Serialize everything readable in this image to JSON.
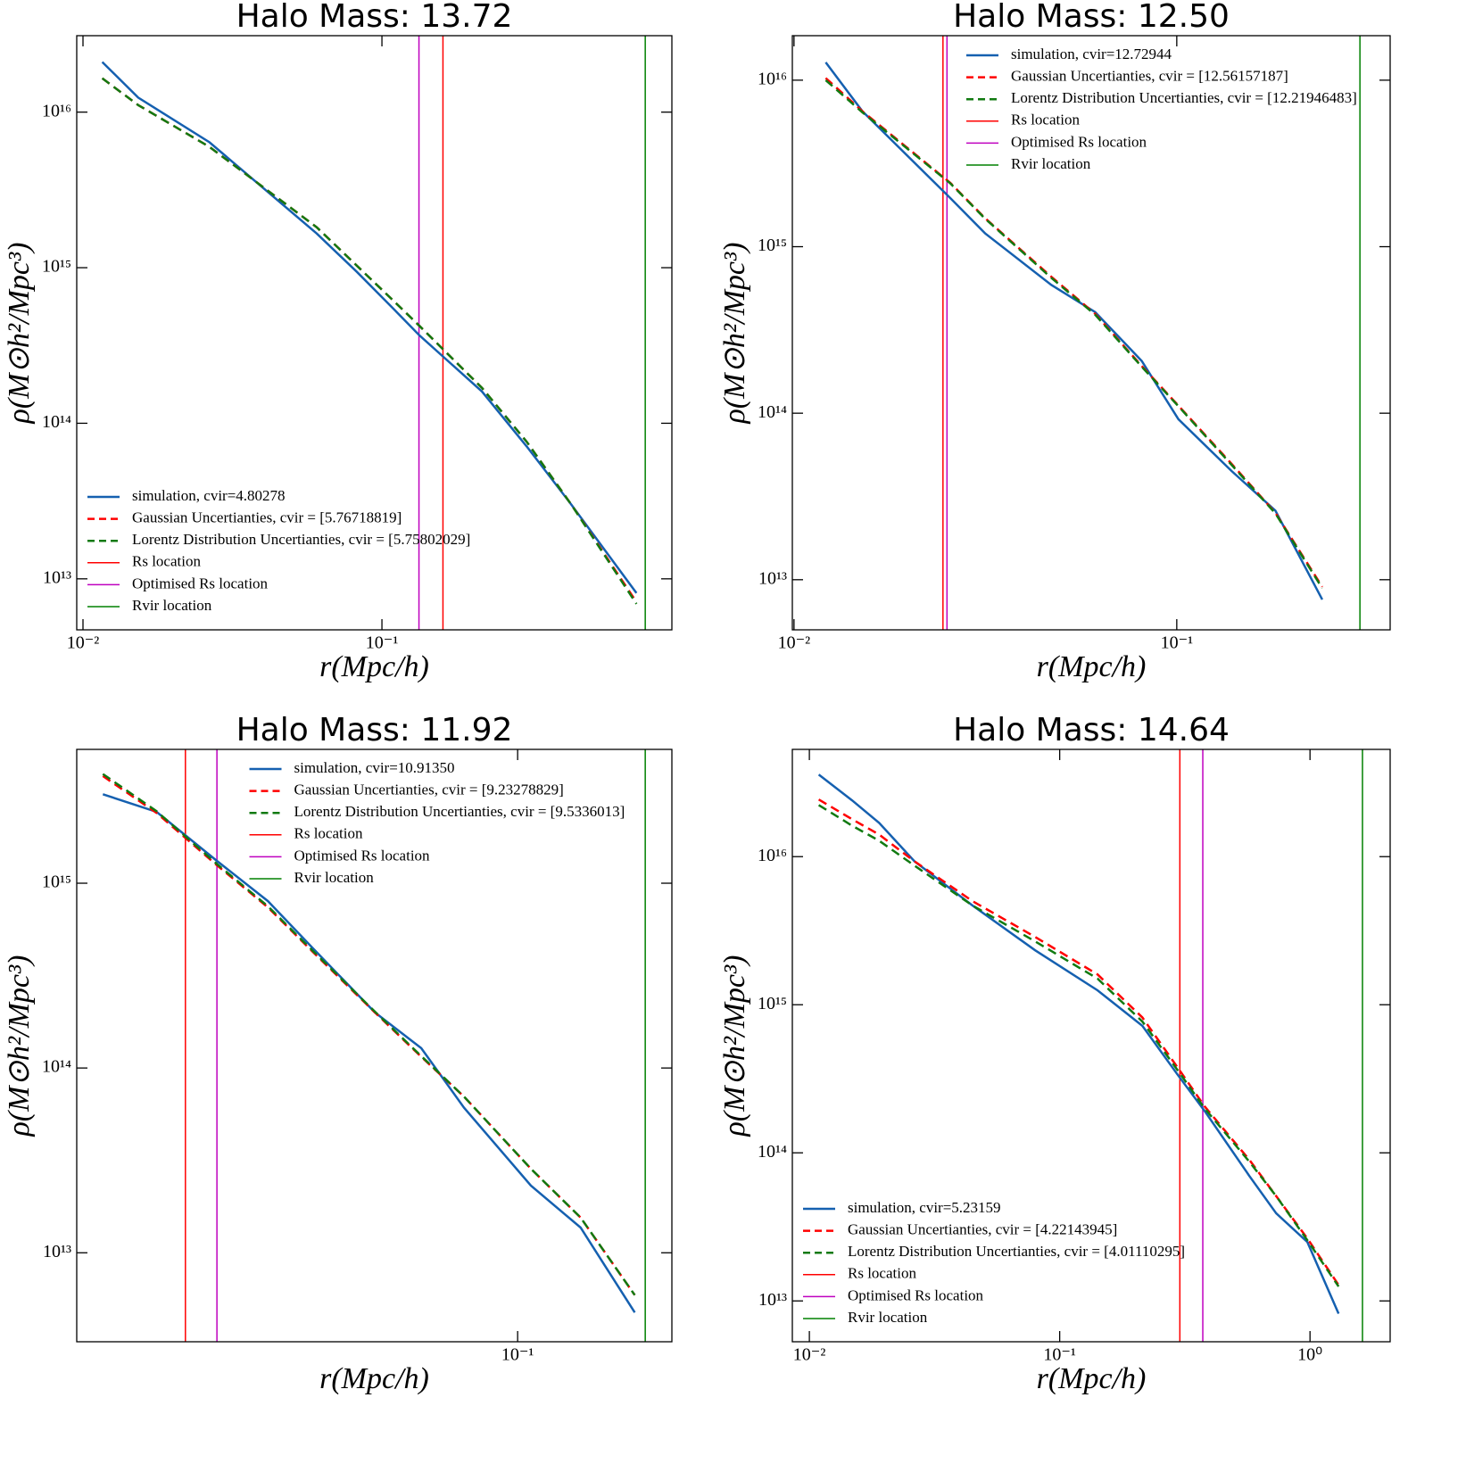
{
  "chart_data": [
    {
      "type": "line",
      "title": "Halo Mass: 13.72",
      "x_label": "r(Mpc/h)",
      "y_label": "ρ(M⊙h²/Mpc³)",
      "xscale": "log",
      "yscale": "log",
      "legend": "lower left",
      "x": [
        0.0116,
        0.0153,
        0.0265,
        0.0605,
        0.0824,
        0.1086,
        0.133,
        0.216,
        0.305,
        0.43,
        0.71
      ],
      "series": [
        {
          "name": "simulation, cvir=4.80278",
          "color": "#1560b0",
          "linestyle": "solid",
          "values": [
            2.1e+16,
            1.24e+16,
            6400000000000000.0,
            1660000000000000.0,
            940000000000000.0,
            550000000000000.0,
            370000000000000.0,
            160000000000000.0,
            71000000000000.0,
            30000000000000.0,
            8100000000000.0
          ]
        },
        {
          "name": "Gaussian Uncertianties, cvir = [5.76718819]",
          "color": "#ff0000",
          "linestyle": "dashed",
          "values": [
            1.65e+16,
            1.11e+16,
            5970000000000000.0,
            1820000000000000.0,
            1030000000000000.0,
            620000000000000.0,
            426000000000000.0,
            169000000000000.0,
            76000000000000.0,
            30000000000000.0,
            7100000000000.0
          ]
        },
        {
          "name": "Lorentz Distribution Uncertianties, cvir = [5.75802029]",
          "color": "#117a11",
          "linestyle": "dashed",
          "values": [
            1.65e+16,
            1.11e+16,
            5970000000000000.0,
            1820000000000000.0,
            1030000000000000.0,
            620000000000000.0,
            426000000000000.0,
            169000000000000.0,
            76000000000000.0,
            30000000000000.0,
            6900000000000.0
          ]
        }
      ],
      "vlines": [
        {
          "name": "Rs location",
          "color": "#ff0000",
          "x": 0.16
        },
        {
          "name": "Optimised Rs location",
          "color": "#bf00bf",
          "x": 0.133
        },
        {
          "name": "Rvir location",
          "color": "#008000",
          "x": 0.76
        }
      ],
      "xlim": [
        0.00953,
        0.933
      ],
      "ylim": [
        4700000000000.0,
        3.1e+16
      ],
      "xticks": [
        {
          "value": 0.01,
          "label": "10⁻²"
        },
        {
          "value": 0.1,
          "label": "10⁻¹"
        }
      ],
      "yticks": [
        {
          "value": 10000000000000.0,
          "label": "10¹³"
        },
        {
          "value": 100000000000000.0,
          "label": "10¹⁴"
        },
        {
          "value": 1000000000000000.0,
          "label": "10¹⁵"
        },
        {
          "value": 1e+16,
          "label": "10¹⁶"
        }
      ]
    },
    {
      "type": "line",
      "title": "Halo Mass: 12.50",
      "x_label": "r(Mpc/h)",
      "y_label": "ρ(M⊙h²/Mpc³)",
      "xscale": "log",
      "yscale": "log",
      "legend": "upper center",
      "x": [
        0.0121,
        0.0151,
        0.0256,
        0.0316,
        0.047,
        0.0612,
        0.081,
        0.101,
        0.139,
        0.181,
        0.24
      ],
      "series": [
        {
          "name": "simulation, cvir=12.72944",
          "color": "#1560b0",
          "linestyle": "solid",
          "values": [
            1.28e+16,
            6500000000000000.0,
            1960000000000000.0,
            1200000000000000.0,
            590000000000000.0,
            405000000000000.0,
            206000000000000.0,
            92000000000000.0,
            45000000000000.0,
            26000000000000.0,
            7600000000000.0
          ]
        },
        {
          "name": "Gaussian Uncertianties, cvir = [12.56157187]",
          "color": "#ff0000",
          "linestyle": "dashed",
          "values": [
            1.03e+16,
            6500000000000000.0,
            2420000000000000.0,
            1480000000000000.0,
            660000000000000.0,
            395000000000000.0,
            192000000000000.0,
            111000000000000.0,
            49700000000000.0,
            25200000000000.0,
            9060000000000.0
          ]
        },
        {
          "name": "Lorentz Distribution Uncertianties, cvir = [12.21946483]",
          "color": "#117a11",
          "linestyle": "dashed",
          "values": [
            1e+16,
            6400000000000000.0,
            2400000000000000.0,
            1470000000000000.0,
            650000000000000.0,
            390000000000000.0,
            190000000000000.0,
            110000000000000.0,
            49000000000000.0,
            25000000000000.0,
            8900000000000.0
          ]
        }
      ],
      "vlines": [
        {
          "name": "Rs location",
          "color": "#ff0000",
          "x": 0.0245
        },
        {
          "name": "Optimised Rs location",
          "color": "#bf00bf",
          "x": 0.0251
        },
        {
          "name": "Rvir location",
          "color": "#008000",
          "x": 0.301
        }
      ],
      "xlim": [
        0.0099,
        0.361
      ],
      "ylim": [
        5000000000000.0,
        1.85e+16
      ],
      "xticks": [
        {
          "value": 0.01,
          "label": "10⁻²"
        },
        {
          "value": 0.1,
          "label": "10⁻¹"
        }
      ],
      "yticks": [
        {
          "value": 10000000000000.0,
          "label": "10¹³"
        },
        {
          "value": 100000000000000.0,
          "label": "10¹⁴"
        },
        {
          "value": 1000000000000000.0,
          "label": "10¹⁵"
        },
        {
          "value": 1e+16,
          "label": "10¹⁶"
        }
      ]
    },
    {
      "type": "line",
      "title": "Halo Mass: 11.92",
      "x_label": "r(Mpc/h)",
      "y_label": "ρ(M⊙h²/Mpc³)",
      "xscale": "log",
      "yscale": "log",
      "legend": "upper center",
      "x": [
        0.012,
        0.0158,
        0.0215,
        0.0279,
        0.0351,
        0.0482,
        0.0611,
        0.076,
        0.107,
        0.138,
        0.182
      ],
      "series": [
        {
          "name": "simulation, cvir=10.91350",
          "color": "#1560b0",
          "linestyle": "solid",
          "values": [
            3030000000000000.0,
            2430000000000000.0,
            1320000000000000.0,
            800000000000000.0,
            445000000000000.0,
            200000000000000.0,
            128000000000000.0,
            61000000000000.0,
            23100000000000.0,
            13700000000000.0,
            4750000000000.0
          ]
        },
        {
          "name": "Gaussian Uncertianties, cvir = [9.23278829]",
          "color": "#ff0000",
          "linestyle": "dashed",
          "values": [
            3800000000000000.0,
            2400000000000000.0,
            1250000000000000.0,
            740000000000000.0,
            425000000000000.0,
            200000000000000.0,
            115000000000000.0,
            70000000000000.0,
            28500000000000.0,
            15500000000000.0,
            5900000000000.0
          ]
        },
        {
          "name": "Lorentz Distribution Uncertianties, cvir = [9.5336013]",
          "color": "#117a11",
          "linestyle": "dashed",
          "values": [
            3900000000000000.0,
            2450000000000000.0,
            1270000000000000.0,
            750000000000000.0,
            430000000000000.0,
            202000000000000.0,
            116000000000000.0,
            70000000000000.0,
            28500000000000.0,
            15500000000000.0,
            5900000000000.0
          ]
        }
      ],
      "vlines": [
        {
          "name": "Rs location",
          "color": "#ff0000",
          "x": 0.0183
        },
        {
          "name": "Optimised Rs location",
          "color": "#bf00bf",
          "x": 0.0215
        },
        {
          "name": "Rvir location",
          "color": "#008000",
          "x": 0.192
        }
      ],
      "xlim": [
        0.0105,
        0.22
      ],
      "ylim": [
        3300000000000.0,
        5300000000000000.0
      ],
      "xticks": [
        {
          "value": 0.1,
          "label": "10⁻¹"
        }
      ],
      "yticks": [
        {
          "value": 10000000000000.0,
          "label": "10¹³"
        },
        {
          "value": 100000000000000.0,
          "label": "10¹⁴"
        },
        {
          "value": 1000000000000000.0,
          "label": "10¹⁵"
        }
      ]
    },
    {
      "type": "line",
      "title": "Halo Mass: 14.64",
      "x_label": "r(Mpc/h)",
      "y_label": "ρ(M⊙h²/Mpc³)",
      "xscale": "log",
      "yscale": "log",
      "legend": "lower left",
      "x": [
        0.0109,
        0.0148,
        0.019,
        0.0263,
        0.0449,
        0.0798,
        0.1417,
        0.214,
        0.297,
        0.379,
        0.573,
        0.733,
        0.976,
        1.3
      ],
      "series": [
        {
          "name": "simulation, cvir=5.23159",
          "color": "#1560b0",
          "linestyle": "solid",
          "values": [
            3.58e+16,
            2.4e+16,
            1.69e+16,
            9300000000000000.0,
            4670000000000000.0,
            2330000000000000.0,
            1250000000000000.0,
            720000000000000.0,
            334000000000000.0,
            192000000000000.0,
            69700000000000.0,
            39000000000000.0,
            25000000000000.0,
            8200000000000.0
          ]
        },
        {
          "name": "Gaussian Uncertianties, cvir = [4.22143945]",
          "color": "#ff0000",
          "linestyle": "dashed",
          "values": [
            2.43e+16,
            1.79e+16,
            1.41e+16,
            9300000000000000.0,
            5000000000000000.0,
            2870000000000000.0,
            1600000000000000.0,
            820000000000000.0,
            373000000000000.0,
            206000000000000.0,
            89500000000000.0,
            51000000000000.0,
            26400000000000.0,
            12800000000000.0
          ]
        },
        {
          "name": "Lorentz Distribution Uncertianties, cvir = [4.01110295]",
          "color": "#117a11",
          "linestyle": "dashed",
          "values": [
            2.23e+16,
            1.62e+16,
            1.28e+16,
            8700000000000000.0,
            4670000000000000.0,
            2680000000000000.0,
            1500000000000000.0,
            770000000000000.0,
            358000000000000.0,
            200000000000000.0,
            87000000000000.0,
            51000000000000.0,
            25700000000000.0,
            12500000000000.0
          ]
        }
      ],
      "vlines": [
        {
          "name": "Rs location",
          "color": "#ff0000",
          "x": 0.302
        },
        {
          "name": "Optimised Rs location",
          "color": "#bf00bf",
          "x": 0.373
        },
        {
          "name": "Rvir location",
          "color": "#008000",
          "x": 1.62
        }
      ],
      "xlim": [
        0.00855,
        2.09
      ],
      "ylim": [
        5300000000000.0,
        5.3e+16
      ],
      "xticks": [
        {
          "value": 0.01,
          "label": "10⁻²"
        },
        {
          "value": 0.1,
          "label": "10⁻¹"
        },
        {
          "value": 1,
          "label": "10⁰"
        }
      ],
      "yticks": [
        {
          "value": 10000000000000.0,
          "label": "10¹³"
        },
        {
          "value": 100000000000000.0,
          "label": "10¹⁴"
        },
        {
          "value": 1000000000000000.0,
          "label": "10¹⁵"
        },
        {
          "value": 1e+16,
          "label": "10¹⁶"
        }
      ]
    }
  ]
}
